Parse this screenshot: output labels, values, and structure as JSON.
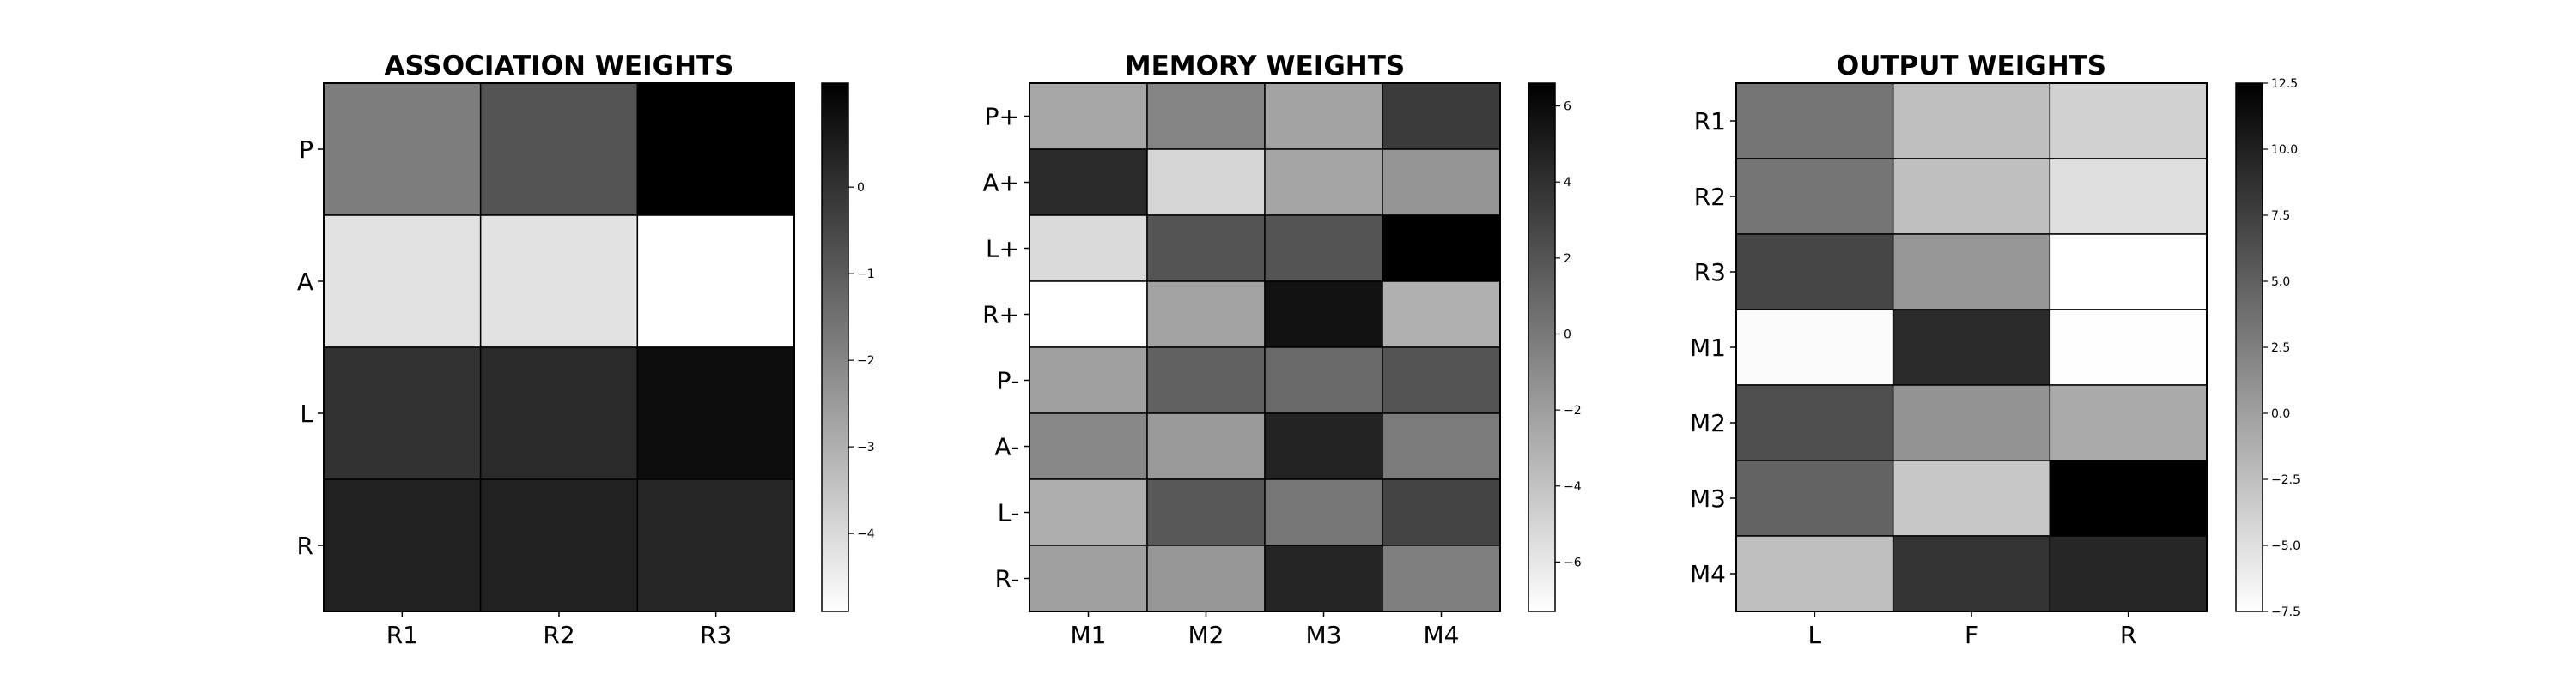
{
  "chart_data": [
    {
      "type": "heatmap",
      "title": "ASSOCIATION WEIGHTS",
      "rows": [
        "P",
        "A",
        "L",
        "R"
      ],
      "cols": [
        "R1",
        "R2",
        "R3"
      ],
      "values": [
        [
          -1.8,
          -0.8,
          1.2
        ],
        [
          -4.2,
          -4.2,
          -4.9
        ],
        [
          0.0,
          0.2,
          0.9
        ],
        [
          0.4,
          0.4,
          0.3
        ]
      ],
      "colormap": "Greys",
      "clim": [
        -4.9,
        1.2
      ],
      "colorbar": {
        "ticks": [
          0,
          -1,
          -2,
          -3,
          -4
        ],
        "labels": [
          "0",
          "−1",
          "−2",
          "−3",
          "−4"
        ]
      }
    },
    {
      "type": "heatmap",
      "title": "MEMORY WEIGHTS",
      "rows": [
        "P+",
        "A+",
        "L+",
        "R+",
        "P-",
        "A-",
        "L-",
        "R-"
      ],
      "cols": [
        "M1",
        "M2",
        "M3",
        "M4"
      ],
      "values": [
        [
          -2.5,
          -0.6,
          -2.3,
          3.4
        ],
        [
          4.3,
          -5.0,
          -2.4,
          -1.5
        ],
        [
          -5.3,
          2.0,
          2.0,
          6.6
        ],
        [
          -7.3,
          -2.3,
          5.6,
          -3.0
        ],
        [
          -2.1,
          1.3,
          0.9,
          2.0
        ],
        [
          -0.8,
          -1.8,
          4.7,
          -0.1
        ],
        [
          -2.9,
          1.8,
          0.1,
          2.9
        ],
        [
          -2.1,
          -1.6,
          4.6,
          -0.3
        ]
      ],
      "colormap": "Greys",
      "clim": [
        -7.3,
        6.6
      ],
      "colorbar": {
        "ticks": [
          6,
          4,
          2,
          0,
          -2,
          -4,
          -6
        ],
        "labels": [
          "6",
          "4",
          "2",
          "0",
          "−2",
          "−4",
          "−6"
        ]
      }
    },
    {
      "type": "heatmap",
      "title": "OUTPUT WEIGHTS",
      "rows": [
        "R1",
        "R2",
        "R3",
        "M1",
        "M2",
        "M3",
        "M4"
      ],
      "cols": [
        "L",
        "F",
        "R"
      ],
      "values": [
        [
          3.3,
          -2.5,
          -3.9
        ],
        [
          3.3,
          -2.5,
          -4.9
        ],
        [
          7.0,
          0.7,
          -7.5
        ],
        [
          -7.2,
          9.2,
          -7.4
        ],
        [
          6.4,
          1.0,
          -0.8
        ],
        [
          4.7,
          -3.1,
          12.5
        ],
        [
          -2.5,
          8.5,
          9.5
        ]
      ],
      "colormap": "Greys",
      "clim": [
        -7.5,
        12.5
      ],
      "colorbar": {
        "ticks": [
          12.5,
          10,
          7.5,
          5,
          2.5,
          0,
          -2.5,
          -5,
          -7.5
        ],
        "labels": [
          "12.5",
          "10.0",
          "7.5",
          "5.0",
          "2.5",
          "0.0",
          "−2.5",
          "−5.0",
          "−7.5"
        ]
      }
    }
  ]
}
